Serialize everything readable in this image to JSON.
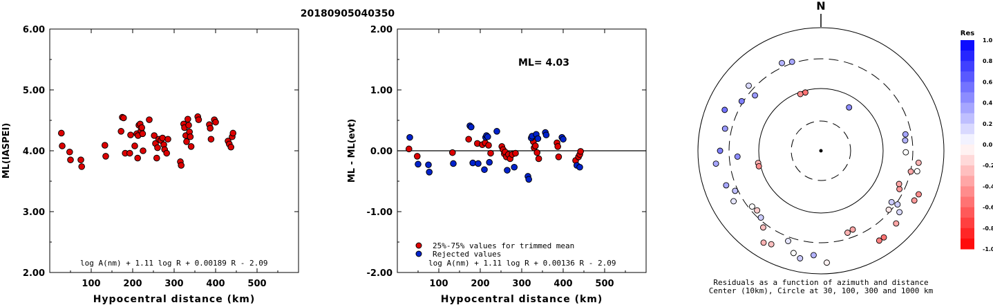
{
  "page_title": "20180905040350",
  "chart_data": [
    {
      "type": "scatter",
      "title": "",
      "xlabel": "Hypocentral distance (km)",
      "ylabel": "ML(IASPEI)",
      "xlim": [
        0,
        600
      ],
      "ylim": [
        2.0,
        6.0
      ],
      "xticks": [
        "100",
        "200",
        "300",
        "400",
        "500"
      ],
      "yticks": [
        "2.00",
        "3.00",
        "4.00",
        "5.00",
        "6.00"
      ],
      "formula": "log A(nm) + 1.11 log R + 0.00189 R - 2.09",
      "series": [
        {
          "color": "#dd0000",
          "points": [
            [
              28,
              4.29
            ],
            [
              30,
              4.08
            ],
            [
              48,
              3.98
            ],
            [
              50,
              3.85
            ],
            [
              75,
              3.85
            ],
            [
              77,
              3.74
            ],
            [
              133,
              4.09
            ],
            [
              135,
              3.91
            ],
            [
              172,
              4.32
            ],
            [
              175,
              4.55
            ],
            [
              178,
              4.54
            ],
            [
              182,
              3.96
            ],
            [
              193,
              3.96
            ],
            [
              195,
              4.26
            ],
            [
              205,
              4.08
            ],
            [
              210,
              4.28
            ],
            [
              212,
              3.88
            ],
            [
              213,
              4.25
            ],
            [
              215,
              4.42
            ],
            [
              218,
              4.44
            ],
            [
              220,
              4.33
            ],
            [
              222,
              4.38
            ],
            [
              224,
              4.28
            ],
            [
              225,
              4.0
            ],
            [
              240,
              4.51
            ],
            [
              252,
              4.25
            ],
            [
              255,
              4.12
            ],
            [
              258,
              3.88
            ],
            [
              260,
              4.05
            ],
            [
              263,
              4.19
            ],
            [
              268,
              4.17
            ],
            [
              272,
              4.21
            ],
            [
              275,
              4.1
            ],
            [
              277,
              4.02
            ],
            [
              282,
              3.96
            ],
            [
              285,
              4.19
            ],
            [
              315,
              3.82
            ],
            [
              317,
              3.76
            ],
            [
              323,
              4.44
            ],
            [
              325,
              4.38
            ],
            [
              328,
              4.25
            ],
            [
              330,
              4.15
            ],
            [
              333,
              4.52
            ],
            [
              335,
              4.42
            ],
            [
              337,
              4.31
            ],
            [
              339,
              4.23
            ],
            [
              341,
              4.07
            ],
            [
              357,
              4.56
            ],
            [
              359,
              4.51
            ],
            [
              385,
              4.43
            ],
            [
              387,
              4.37
            ],
            [
              389,
              4.19
            ],
            [
              397,
              4.51
            ],
            [
              400,
              4.47
            ],
            [
              430,
              4.16
            ],
            [
              433,
              4.11
            ],
            [
              437,
              4.06
            ],
            [
              440,
              4.23
            ],
            [
              442,
              4.29
            ]
          ]
        }
      ]
    },
    {
      "type": "scatter",
      "title": "",
      "xlabel": "Hypocentral distance (km)",
      "ylabel": "ML - ML(evt)",
      "xlim": [
        0,
        600
      ],
      "ylim": [
        -2.0,
        2.0
      ],
      "xticks": [
        "100",
        "200",
        "300",
        "400",
        "500"
      ],
      "yticks": [
        "-2.00",
        "-1.00",
        "0.00",
        "1.00",
        "2.00"
      ],
      "annotation": "ML= 4.03",
      "formula": "log A(nm) + 1.11 log R + 0.00136 R - 2.09",
      "legend": {
        "position": "bottom-left",
        "entries": [
          {
            "label": "25%-75% values for trimmed mean",
            "color": "#dd0000"
          },
          {
            "label": "Rejected values",
            "color": "#0022cc"
          }
        ]
      },
      "series": [
        {
          "name": "25%-75% values for trimmed mean",
          "color": "#dd0000",
          "points": [
            [
              28,
              0.03
            ],
            [
              48,
              -0.09
            ],
            [
              133,
              -0.03
            ],
            [
              172,
              0.19
            ],
            [
              193,
              0.12
            ],
            [
              205,
              0.1
            ],
            [
              212,
              0.13
            ],
            [
              220,
              0.09
            ],
            [
              225,
              -0.04
            ],
            [
              252,
              0.07
            ],
            [
              255,
              0.02
            ],
            [
              258,
              -0.05
            ],
            [
              260,
              -0.02
            ],
            [
              263,
              -0.1
            ],
            [
              268,
              -0.06
            ],
            [
              272,
              -0.13
            ],
            [
              277,
              -0.06
            ],
            [
              285,
              -0.04
            ],
            [
              328,
              0.15
            ],
            [
              330,
              0.05
            ],
            [
              333,
              0.08
            ],
            [
              337,
              -0.03
            ],
            [
              341,
              -0.13
            ],
            [
              385,
              0.13
            ],
            [
              387,
              0.07
            ],
            [
              389,
              -0.1
            ],
            [
              430,
              -0.16
            ],
            [
              437,
              -0.1
            ],
            [
              440,
              -0.06
            ],
            [
              442,
              -0.01
            ]
          ]
        },
        {
          "name": "Rejected values",
          "color": "#0022cc",
          "points": [
            [
              30,
              0.22
            ],
            [
              50,
              -0.22
            ],
            [
              75,
              -0.23
            ],
            [
              77,
              -0.35
            ],
            [
              135,
              -0.21
            ],
            [
              175,
              0.41
            ],
            [
              178,
              0.39
            ],
            [
              182,
              -0.2
            ],
            [
              195,
              -0.21
            ],
            [
              210,
              -0.31
            ],
            [
              213,
              0.22
            ],
            [
              215,
              0.25
            ],
            [
              218,
              0.23
            ],
            [
              222,
              -0.19
            ],
            [
              240,
              0.32
            ],
            [
              265,
              -0.32
            ],
            [
              282,
              -0.27
            ],
            [
              315,
              -0.42
            ],
            [
              317,
              -0.47
            ],
            [
              323,
              0.21
            ],
            [
              325,
              0.24
            ],
            [
              335,
              0.27
            ],
            [
              339,
              0.2
            ],
            [
              357,
              0.3
            ],
            [
              359,
              0.26
            ],
            [
              397,
              0.22
            ],
            [
              400,
              0.19
            ],
            [
              433,
              -0.24
            ],
            [
              440,
              -0.27
            ]
          ]
        }
      ]
    }
  ],
  "polar": {
    "north_label": "N",
    "caption_line1": "Residuals as a function of azimuth and distance",
    "caption_line2": "Center (10km), Circle at 30, 100, 300 and 1000 km",
    "stations": [
      {
        "az": 342,
        "dist": 0.76,
        "res": 0.35
      },
      {
        "az": 336,
        "dist": 0.78,
        "res": 0.3
      },
      {
        "az": 312,
        "dist": 0.79,
        "res": 0.15
      },
      {
        "az": 310,
        "dist": 0.7,
        "res": 0.4
      },
      {
        "az": 302,
        "dist": 0.76,
        "res": 0.5
      },
      {
        "az": 293,
        "dist": 0.85,
        "res": 0.55
      },
      {
        "az": 283,
        "dist": 0.8,
        "res": 0.4
      },
      {
        "az": 270,
        "dist": 0.82,
        "res": 0.5
      },
      {
        "az": 266,
        "dist": 0.68,
        "res": 0.45
      },
      {
        "az": 263,
        "dist": 0.86,
        "res": 0.35
      },
      {
        "az": 259,
        "dist": 0.52,
        "res": -0.3
      },
      {
        "az": 256,
        "dist": 0.52,
        "res": -0.45
      },
      {
        "az": 250,
        "dist": 0.82,
        "res": 0.35
      },
      {
        "az": 245,
        "dist": 0.77,
        "res": 0.25
      },
      {
        "az": 240,
        "dist": 0.82,
        "res": 0.1
      },
      {
        "az": 231,
        "dist": 0.72,
        "res": 0.0
      },
      {
        "az": 227,
        "dist": 0.71,
        "res": -0.2
      },
      {
        "az": 222,
        "dist": 0.73,
        "res": 0.2
      },
      {
        "az": 217,
        "dist": 0.78,
        "res": -0.25
      },
      {
        "az": 212,
        "dist": 0.88,
        "res": -0.3
      },
      {
        "az": 208,
        "dist": 0.86,
        "res": -0.25
      },
      {
        "az": 200,
        "dist": 0.78,
        "res": 0.1
      },
      {
        "az": 195,
        "dist": 0.86,
        "res": 0.0
      },
      {
        "az": 191,
        "dist": 0.89,
        "res": 0.2
      },
      {
        "az": 184,
        "dist": 0.85,
        "res": 0.3
      },
      {
        "az": 177,
        "dist": 0.91,
        "res": -0.05
      },
      {
        "az": 162,
        "dist": 0.7,
        "res": -0.3
      },
      {
        "az": 158,
        "dist": 0.69,
        "res": -0.35
      },
      {
        "az": 147,
        "dist": 0.87,
        "res": -0.5
      },
      {
        "az": 144,
        "dist": 0.87,
        "res": -0.55
      },
      {
        "az": 134,
        "dist": 0.85,
        "res": -0.35
      },
      {
        "az": 128,
        "dist": 0.81,
        "res": 0.15
      },
      {
        "az": 125,
        "dist": 0.76,
        "res": 0.2
      },
      {
        "az": 131,
        "dist": 0.73,
        "res": -0.1
      },
      {
        "az": 126,
        "dist": 0.71,
        "res": 0.2
      },
      {
        "az": 118,
        "dist": 0.86,
        "res": -0.4
      },
      {
        "az": 114,
        "dist": 0.87,
        "res": -0.45
      },
      {
        "az": 116,
        "dist": 0.71,
        "res": -0.4
      },
      {
        "az": 113,
        "dist": 0.69,
        "res": -0.35
      },
      {
        "az": 103,
        "dist": 0.75,
        "res": -0.35
      },
      {
        "az": 102,
        "dist": 0.8,
        "res": 0.0
      },
      {
        "az": 97,
        "dist": 0.8,
        "res": -0.3
      },
      {
        "az": 91,
        "dist": 0.69,
        "res": 0.0
      },
      {
        "az": 83,
        "dist": 0.69,
        "res": 0.3
      },
      {
        "az": 79,
        "dist": 0.7,
        "res": 0.35
      },
      {
        "az": 33,
        "dist": 0.42,
        "res": 0.45
      },
      {
        "az": 345,
        "dist": 0.49,
        "res": -0.55
      },
      {
        "az": 340,
        "dist": 0.49,
        "res": -0.45
      }
    ]
  },
  "colorbar": {
    "title": "Res",
    "labels": [
      "1.0",
      "0.8",
      "0.6",
      "0.4",
      "0.2",
      "0.0",
      "-0.2",
      "-0.4",
      "-0.6",
      "-0.8",
      "-1.0"
    ]
  }
}
